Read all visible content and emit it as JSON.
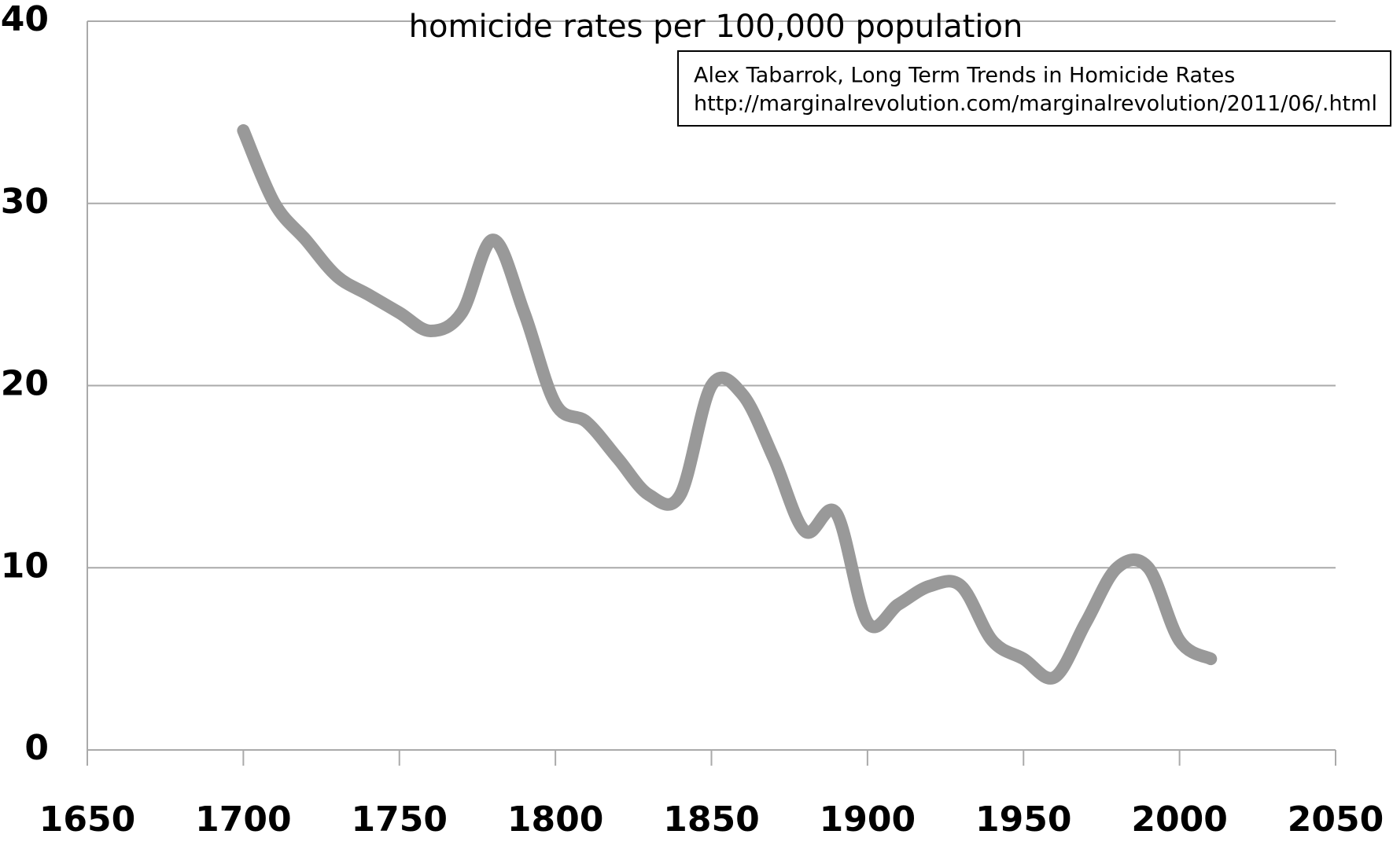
{
  "chart_data": {
    "type": "line",
    "title": "homicide rates per 100,000 population",
    "annotations": [
      "Alex Tabarrok, Long Term Trends in Homicide Rates",
      "http://marginalrevolution.com/marginalrevolution/2011/06/.html"
    ],
    "x": [
      1700,
      1710,
      1720,
      1730,
      1740,
      1750,
      1760,
      1770,
      1780,
      1790,
      1800,
      1810,
      1820,
      1830,
      1840,
      1850,
      1860,
      1870,
      1880,
      1890,
      1900,
      1910,
      1920,
      1930,
      1940,
      1950,
      1960,
      1970,
      1980,
      1990,
      2000,
      2010
    ],
    "series": [
      {
        "name": "homicide rate",
        "color": "#999999",
        "values": [
          34,
          30,
          28,
          26,
          25,
          24,
          23,
          24,
          28,
          24,
          19,
          18,
          16,
          14,
          14,
          20,
          19.5,
          16,
          12,
          13,
          7,
          8,
          9,
          9,
          6,
          5,
          4,
          7,
          10,
          10,
          6,
          5
        ]
      }
    ],
    "xlim": [
      1650,
      2050
    ],
    "xticks": [
      1650,
      1700,
      1750,
      1800,
      1850,
      1900,
      1950,
      2000,
      2050
    ],
    "ylim": [
      0,
      40
    ],
    "yticks": [
      0,
      10,
      20,
      30,
      40
    ],
    "grid": true
  }
}
